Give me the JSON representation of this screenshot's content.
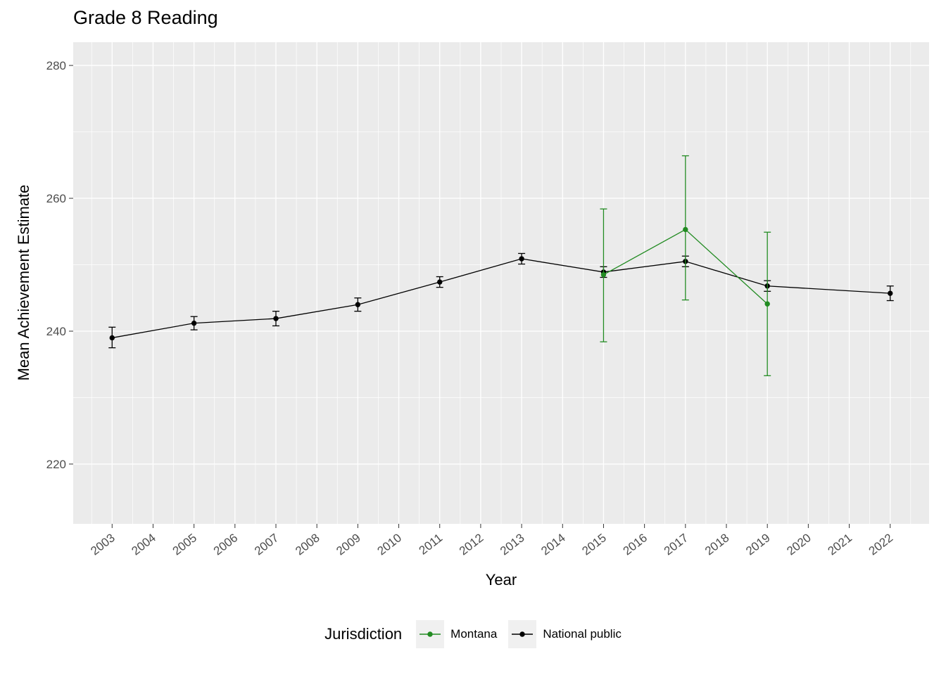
{
  "title": "Grade 8 Reading",
  "chart_data": {
    "type": "line",
    "title": "Grade 8 Reading",
    "xlabel": "Year",
    "ylabel": "Mean Achievement Estimate",
    "legend_title": "Jurisdiction",
    "legend_position": "bottom",
    "grid": true,
    "panel_color": "#EBEBEB",
    "grid_color": "#FFFFFF",
    "tick_label_color": "#4D4D4D",
    "xlim": [
      2002.05,
      2022.95
    ],
    "ylim": [
      211,
      283.5
    ],
    "x_ticks": [
      2003,
      2004,
      2005,
      2006,
      2007,
      2008,
      2009,
      2010,
      2011,
      2012,
      2013,
      2014,
      2015,
      2016,
      2017,
      2018,
      2019,
      2020,
      2021,
      2022
    ],
    "y_ticks": [
      220,
      240,
      260,
      280
    ],
    "series": [
      {
        "name": "National public",
        "color": "#000000",
        "points": [
          {
            "x": 2003,
            "y": 239.0,
            "lo": 237.5,
            "hi": 240.6
          },
          {
            "x": 2005,
            "y": 241.2,
            "lo": 240.2,
            "hi": 242.2
          },
          {
            "x": 2007,
            "y": 241.9,
            "lo": 240.8,
            "hi": 243.0
          },
          {
            "x": 2009,
            "y": 244.0,
            "lo": 243.0,
            "hi": 245.0
          },
          {
            "x": 2011,
            "y": 247.4,
            "lo": 246.6,
            "hi": 248.2
          },
          {
            "x": 2013,
            "y": 250.9,
            "lo": 250.1,
            "hi": 251.7
          },
          {
            "x": 2015,
            "y": 248.9,
            "lo": 248.1,
            "hi": 249.7
          },
          {
            "x": 2017,
            "y": 250.5,
            "lo": 249.7,
            "hi": 251.3
          },
          {
            "x": 2019,
            "y": 246.8,
            "lo": 246.0,
            "hi": 247.6
          },
          {
            "x": 2022,
            "y": 245.7,
            "lo": 244.6,
            "hi": 246.8
          }
        ]
      },
      {
        "name": "Montana",
        "color": "#228B22",
        "points": [
          {
            "x": 2015,
            "y": 248.5,
            "lo": 238.4,
            "hi": 258.4
          },
          {
            "x": 2017,
            "y": 255.3,
            "lo": 244.7,
            "hi": 266.4
          },
          {
            "x": 2019,
            "y": 244.1,
            "lo": 233.3,
            "hi": 254.9
          }
        ]
      }
    ]
  }
}
